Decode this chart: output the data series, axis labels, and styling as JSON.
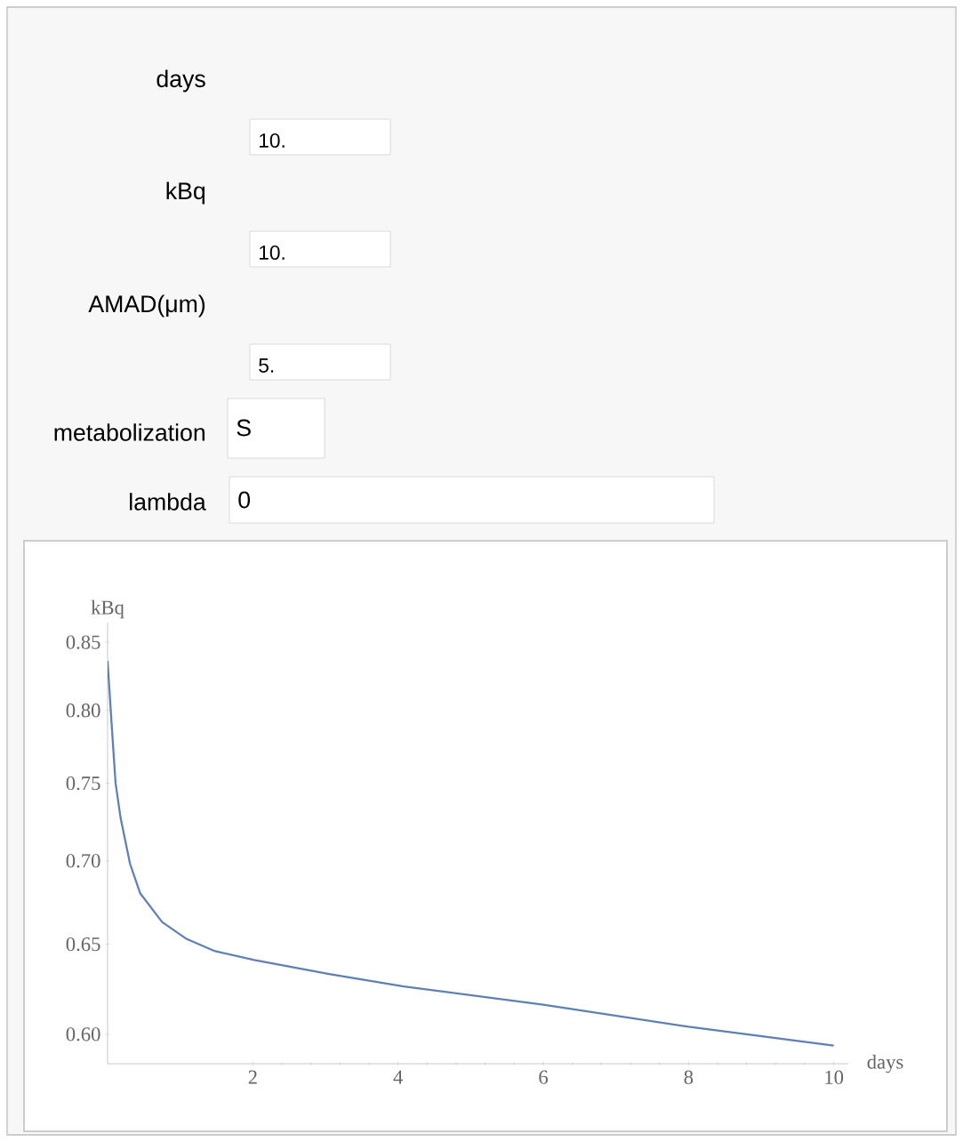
{
  "chart_data": {
    "type": "line",
    "xlabel": "days",
    "ylabel": "kBq",
    "x": [
      0,
      0.06,
      0.11,
      0.18,
      0.31,
      0.45,
      0.75,
      1.09,
      1.48,
      2.02,
      3.05,
      4.08,
      6,
      8,
      10
    ],
    "series": [
      {
        "color": "#5e81b5",
        "values": [
          0.836,
          0.787,
          0.75,
          0.727,
          0.698,
          0.68,
          0.663,
          0.653,
          0.646,
          0.641,
          0.633,
          0.626,
          0.616,
          0.604,
          0.594
        ]
      }
    ],
    "xlim": [
      0,
      10.2
    ],
    "ylim": [
      0.5845,
      0.865
    ],
    "log": "y",
    "xticks": [
      2,
      4,
      6,
      8,
      10
    ],
    "yticks": [
      {
        "value": 0.6,
        "label": "0.60"
      },
      {
        "value": 0.65,
        "label": "0.65"
      },
      {
        "value": 0.7,
        "label": "0.70"
      },
      {
        "value": 0.75,
        "label": "0.75"
      },
      {
        "value": 0.8,
        "label": "0.80"
      },
      {
        "value": 0.85,
        "label": "0.85"
      }
    ],
    "marker": "none",
    "line_style": "solid",
    "annotations": [
      "days",
      "10.",
      "kBq",
      "10.",
      "AMAD(μm)",
      "5.",
      "metabolization",
      "S",
      "lambda",
      "0"
    ]
  }
}
